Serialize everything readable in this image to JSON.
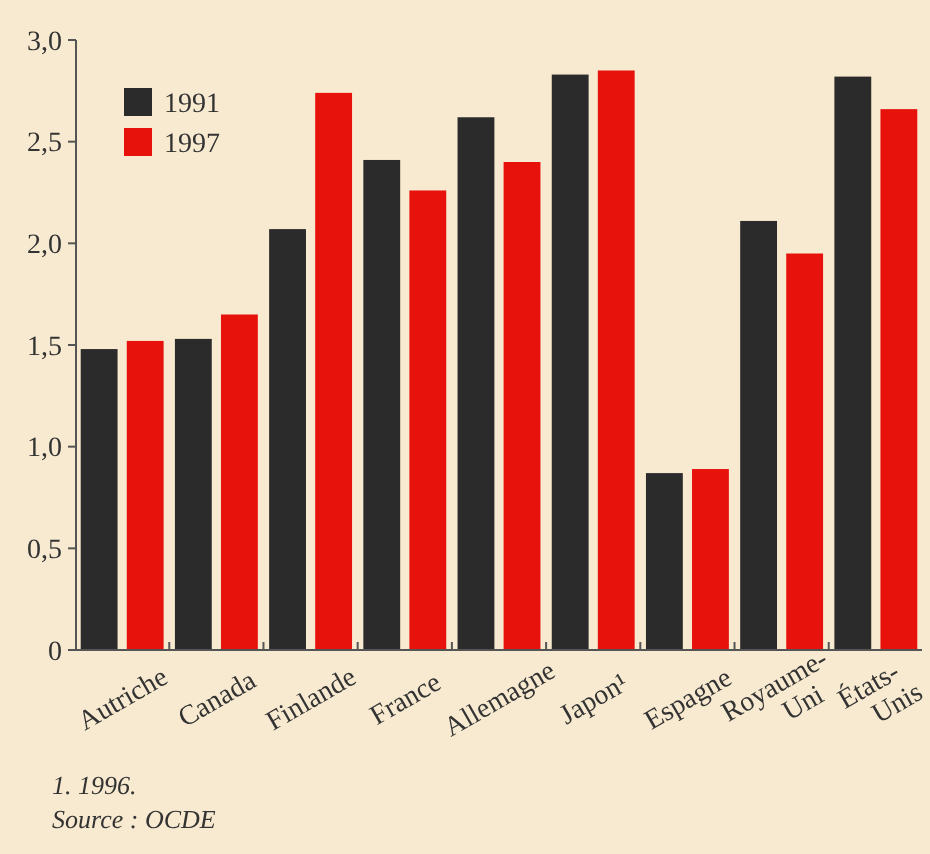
{
  "chart_data": {
    "type": "bar",
    "categories": [
      "Autriche",
      "Canada",
      "Finlande",
      "France",
      "Allemagne",
      "Japon¹",
      "Espagne",
      "Royaume-Uni",
      "États-Unis"
    ],
    "series": [
      {
        "name": "1991",
        "color": "#2b2b2b",
        "values": [
          1.48,
          1.53,
          2.07,
          2.41,
          2.62,
          2.83,
          0.87,
          2.11,
          2.82
        ]
      },
      {
        "name": "1997",
        "color": "#e8120c",
        "values": [
          1.52,
          1.65,
          2.74,
          2.26,
          2.4,
          2.85,
          0.89,
          1.95,
          2.66
        ]
      }
    ],
    "ylim": [
      0,
      3
    ],
    "yticks": [
      0,
      {
        "value": 0.5,
        "label": "0,5"
      },
      {
        "value": 1,
        "label": "1,0"
      },
      {
        "value": 1.5,
        "label": "1,5"
      },
      {
        "value": 2,
        "label": "2,0"
      },
      {
        "value": 2.5,
        "label": "2,5"
      },
      {
        "value": 3,
        "label": "3,0"
      }
    ],
    "grid": false,
    "legend": "top left",
    "annotations": [
      "1. 1996.",
      "Source : OCDE"
    ]
  }
}
